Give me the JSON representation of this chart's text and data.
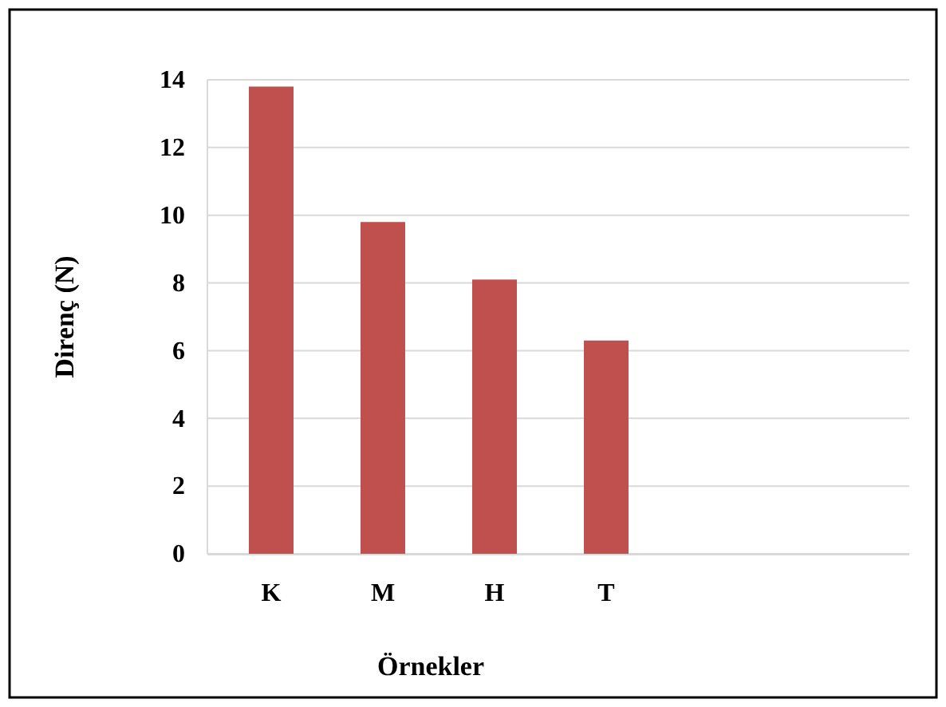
{
  "chart_data": {
    "type": "bar",
    "xlabel": "Örnekler",
    "ylabel": "Direnç (N)",
    "categories": [
      "K",
      "M",
      "H",
      "T",
      null,
      null
    ],
    "values": [
      13.8,
      9.8,
      8.1,
      6.3,
      null,
      null
    ],
    "color": "#c0504d",
    "ylim": [
      0,
      14
    ],
    "yticks": [
      0,
      2,
      4,
      6,
      8,
      10,
      12,
      14
    ],
    "grid": "y"
  }
}
